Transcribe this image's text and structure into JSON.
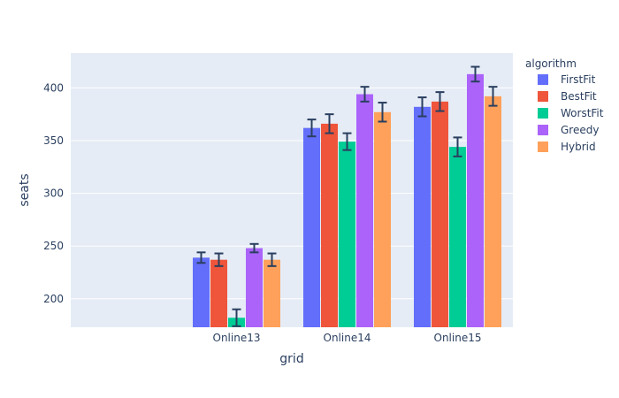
{
  "chart_data": {
    "type": "bar",
    "xlabel": "grid",
    "ylabel": "seats",
    "categories": [
      "",
      "Online13",
      "Online14",
      "Online15"
    ],
    "ylim": [
      173,
      433
    ],
    "yticks": [
      200,
      250,
      300,
      350,
      400
    ],
    "grid": true,
    "legend": {
      "title": "algorithm",
      "placement": "right"
    },
    "series": [
      {
        "name": "FirstFit",
        "color": "#636efa",
        "values": [
          null,
          239,
          362,
          382
        ],
        "errors": [
          null,
          5,
          8,
          9
        ]
      },
      {
        "name": "BestFit",
        "color": "#ef553b",
        "values": [
          null,
          237,
          366,
          387
        ],
        "errors": [
          null,
          6,
          9,
          9
        ]
      },
      {
        "name": "WorstFit",
        "color": "#00cc96",
        "values": [
          null,
          182,
          349,
          344
        ],
        "errors": [
          null,
          8,
          8,
          9
        ]
      },
      {
        "name": "Greedy",
        "color": "#ab63fa",
        "values": [
          null,
          248,
          394,
          413
        ],
        "errors": [
          null,
          4,
          7,
          7
        ]
      },
      {
        "name": "Hybrid",
        "color": "#ffa15a",
        "values": [
          null,
          237,
          377,
          392
        ],
        "errors": [
          null,
          6,
          9,
          9
        ]
      }
    ],
    "colors": {
      "plot_bg": "#e5ecf6",
      "grid": "#ffffff",
      "text": "#2a3f5f",
      "error_bar": "#2a3f5f"
    }
  }
}
